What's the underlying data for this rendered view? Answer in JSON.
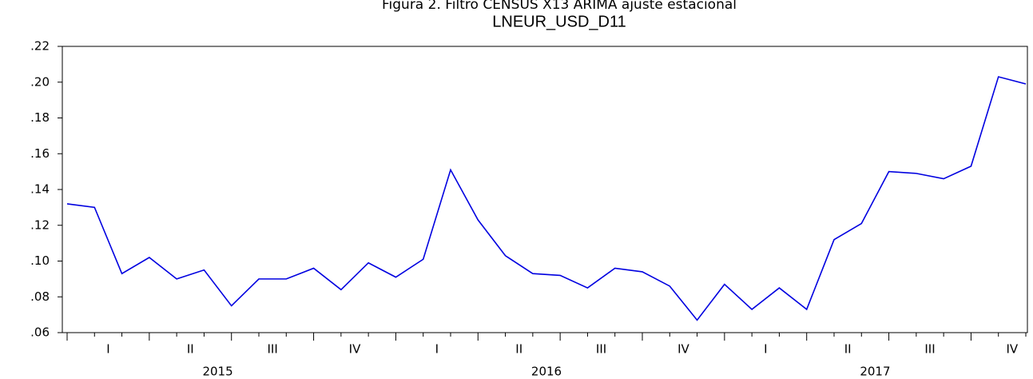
{
  "chart_data": {
    "type": "line",
    "title": "Figura 2. Filtro CENSUS X13 ARIMA ajuste estacional",
    "subtitle": "LNEUR_USD_D11",
    "x_axis": [
      {
        "year": "2015",
        "quarters": [
          "I",
          "II",
          "III",
          "IV"
        ]
      },
      {
        "year": "2016",
        "quarters": [
          "I",
          "II",
          "III",
          "IV"
        ]
      },
      {
        "year": "2017",
        "quarters": [
          "I",
          "II",
          "III",
          "IV"
        ]
      }
    ],
    "series": [
      {
        "name": "LNEUR_USD_D11",
        "color": "#0000e0",
        "values": [
          0.132,
          0.13,
          0.093,
          0.102,
          0.09,
          0.095,
          0.075,
          0.09,
          0.09,
          0.096,
          0.084,
          0.099,
          0.091,
          0.101,
          0.151,
          0.123,
          0.103,
          0.093,
          0.092,
          0.085,
          0.096,
          0.094,
          0.086,
          0.067,
          0.087,
          0.073,
          0.085,
          0.073,
          0.112,
          0.121,
          0.15,
          0.149,
          0.146,
          0.153,
          0.203,
          0.199
        ]
      }
    ],
    "ylim": [
      0.06,
      0.22
    ],
    "yticks": [
      {
        "value": 0.06,
        "label": ".06"
      },
      {
        "value": 0.08,
        "label": ".08"
      },
      {
        "value": 0.1,
        "label": ".10"
      },
      {
        "value": 0.12,
        "label": ".12"
      },
      {
        "value": 0.14,
        "label": ".14"
      },
      {
        "value": 0.16,
        "label": ".16"
      },
      {
        "value": 0.18,
        "label": ".18"
      },
      {
        "value": 0.2,
        "label": ".20"
      },
      {
        "value": 0.22,
        "label": ".22"
      }
    ],
    "grid": false
  }
}
